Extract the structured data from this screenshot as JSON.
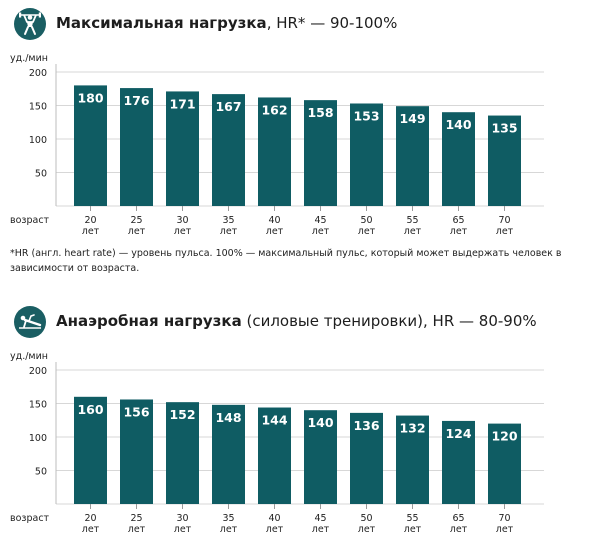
{
  "charts": [
    {
      "title_bold": "Максимальная нагрузка",
      "title_rest": ", HR* — 90-100%",
      "icon": "weightlifter-icon"
    },
    {
      "title_bold": "Анаэробная нагрузка",
      "title_rest": " (силовые тренировки), HR — 80-90%",
      "icon": "push-up-icon"
    }
  ],
  "footnote": "*HR (англ. heart rate) — уровень пульса. 100% — максимальный пульс, который может выдержать человек в зависимости от возраста.",
  "colors": {
    "bar": "#0f5c63",
    "icon_bg": "#1a5e63",
    "grid": "#d7d7d7",
    "value_text": "#ffffff"
  },
  "chart_data": [
    {
      "type": "bar",
      "title": "Максимальная нагрузка, HR* — 90-100%",
      "ylabel": "уд./мин",
      "xlabel": "возраст",
      "ylim": [
        0,
        200
      ],
      "yticks": [
        50,
        100,
        150,
        200
      ],
      "grid": true,
      "categories": [
        "20",
        "25",
        "30",
        "35",
        "40",
        "45",
        "50",
        "55",
        "65",
        "70"
      ],
      "category_unit": "лет",
      "values": [
        180,
        176,
        171,
        167,
        162,
        158,
        153,
        149,
        140,
        135
      ]
    },
    {
      "type": "bar",
      "title": "Анаэробная нагрузка (силовые тренировки), HR — 80-90%",
      "ylabel": "уд./мин",
      "xlabel": "возраст",
      "ylim": [
        0,
        200
      ],
      "yticks": [
        50,
        100,
        150,
        200
      ],
      "grid": true,
      "categories": [
        "20",
        "25",
        "30",
        "35",
        "40",
        "45",
        "50",
        "55",
        "65",
        "70"
      ],
      "category_unit": "лет",
      "values": [
        160,
        156,
        152,
        148,
        144,
        140,
        136,
        132,
        124,
        120
      ]
    }
  ]
}
